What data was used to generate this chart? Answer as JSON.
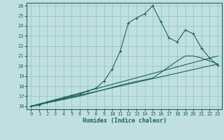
{
  "xlabel": "Humidex (Indice chaleur)",
  "bg_color": "#c0e0e0",
  "grid_color": "#90c0c0",
  "line_color": "#206060",
  "xlim": [
    -0.5,
    23.5
  ],
  "ylim": [
    15.7,
    26.3
  ],
  "xticks": [
    0,
    1,
    2,
    3,
    4,
    5,
    6,
    7,
    8,
    9,
    10,
    11,
    12,
    13,
    14,
    15,
    16,
    17,
    18,
    19,
    20,
    21,
    22,
    23
  ],
  "yticks": [
    16,
    17,
    18,
    19,
    20,
    21,
    22,
    23,
    24,
    25,
    26
  ],
  "line1_x": [
    0,
    1,
    2,
    3,
    4,
    5,
    6,
    7,
    8,
    9,
    10,
    11,
    12,
    13,
    14,
    15,
    16,
    17,
    18,
    19,
    20,
    21,
    22,
    23
  ],
  "line1_y": [
    16.0,
    16.1,
    16.4,
    16.6,
    16.8,
    17.0,
    17.2,
    17.5,
    17.8,
    18.5,
    19.7,
    21.5,
    24.3,
    24.8,
    25.2,
    26.0,
    24.4,
    22.8,
    22.4,
    23.6,
    23.2,
    21.8,
    20.8,
    20.1
  ],
  "line2_x": [
    0,
    23
  ],
  "line2_y": [
    16.0,
    20.2
  ],
  "line3_x": [
    0,
    23
  ],
  "line3_y": [
    16.0,
    21.0
  ],
  "line4_x": [
    0,
    6,
    12,
    15,
    18,
    19,
    20,
    21,
    22,
    23
  ],
  "line4_y": [
    16.0,
    17.0,
    18.3,
    18.8,
    20.5,
    21.0,
    21.0,
    20.8,
    20.5,
    20.2
  ],
  "tick_fontsize": 5.0,
  "label_fontsize": 6.0
}
